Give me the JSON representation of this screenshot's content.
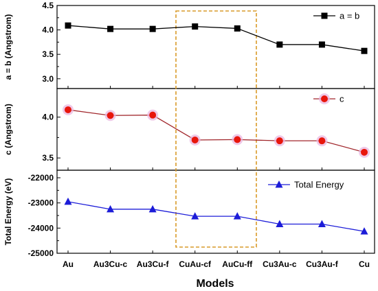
{
  "chart_data": {
    "type": "line",
    "categories": [
      "Au",
      "Au3Cu-c",
      "Au3Cu-f",
      "CuAu-cf",
      "AuCu-ff",
      "Cu3Au-c",
      "Cu3Au-f",
      "Cu"
    ],
    "xlabel": "Models",
    "highlight_box": {
      "from_category": "CuAu-cf",
      "to_category": "AuCu-ff",
      "color": "#d99a28",
      "style": "dashed"
    },
    "panels": [
      {
        "ylabel": "a = b (Angstrom)",
        "ylim": [
          2.8,
          4.5
        ],
        "yticks": [
          "3.0",
          "3.5",
          "4.0",
          "4.5"
        ],
        "series": [
          {
            "name": "a = b",
            "marker": "square",
            "color": "#000000",
            "values": [
              4.09,
              4.02,
              4.02,
              4.07,
              4.03,
              3.7,
              3.7,
              3.57
            ]
          }
        ],
        "legend": "top-right"
      },
      {
        "ylabel": "c (Angstrom)",
        "ylim": [
          3.35,
          4.35
        ],
        "yticks": [
          "3.5",
          "4.0"
        ],
        "series": [
          {
            "name": "c",
            "marker": "circle",
            "color": "#e8160c",
            "line_color": "#a0252a",
            "values": [
              4.09,
              4.02,
              4.025,
              3.72,
              3.725,
              3.71,
              3.71,
              3.57
            ]
          }
        ],
        "legend": "top-right"
      },
      {
        "ylabel": "Total Energy (eV)",
        "ylim": [
          -25000,
          -21700
        ],
        "yticks": [
          "-22000",
          "-23000",
          "-24000",
          "-25000"
        ],
        "series": [
          {
            "name": "Total Energy",
            "marker": "triangle",
            "color": "#1c1cd8",
            "values": [
              -22950,
              -23250,
              -23250,
              -23530,
              -23530,
              -23840,
              -23840,
              -24130
            ]
          }
        ],
        "legend": "top-right"
      }
    ]
  }
}
